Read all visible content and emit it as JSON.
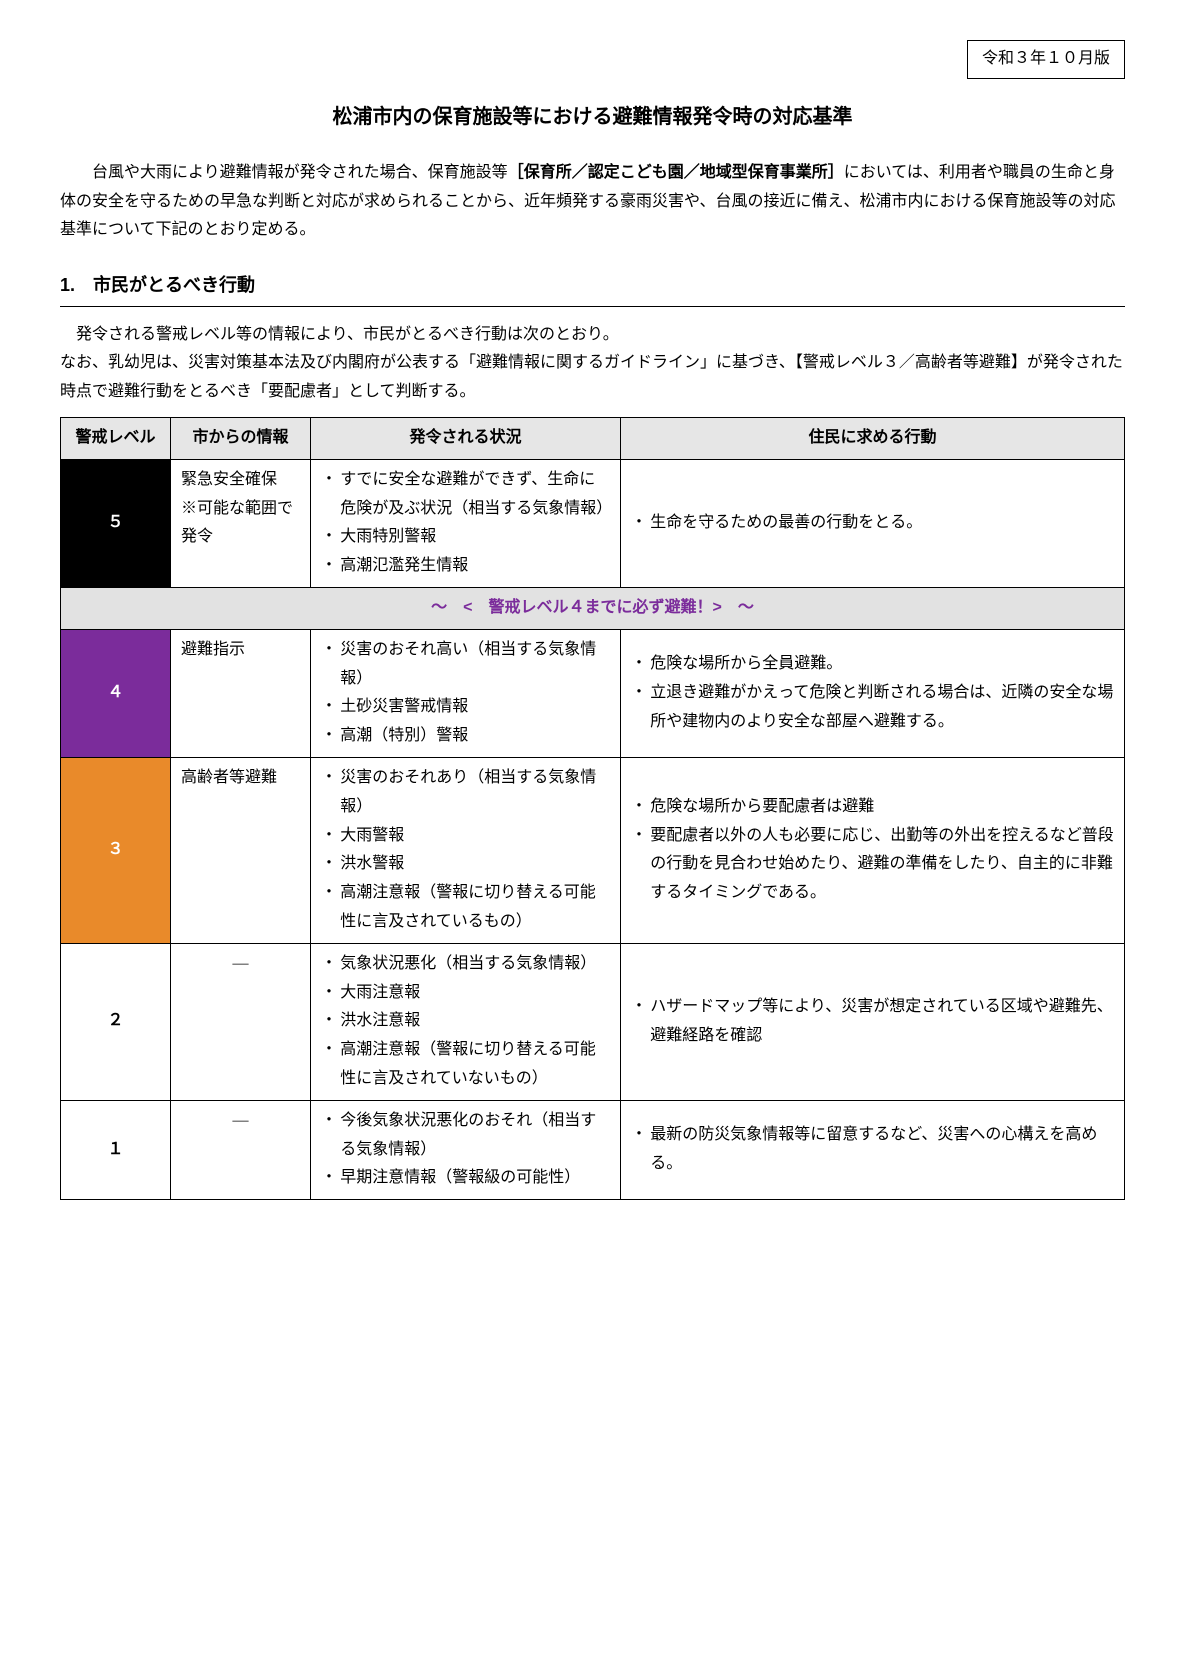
{
  "version_label": "令和３年１０月版",
  "title": "松浦市内の保育施設等における避難情報発令時の対応基準",
  "intro_pre": "　台風や大雨により避難情報が発令された場合、保育施設等",
  "intro_bold": "［保育所／認定こども園／地域型保育事業所］",
  "intro_post": "においては、利用者や職員の生命と身体の安全を守るための早急な判断と対応が求められることから、近年頻発する豪雨災害や、台風の接近に備え、松浦市内における保育施設等の対応基準について下記のとおり定める。",
  "section1_heading": "1.　市民がとるべき行動",
  "section1_p1": "発令される警戒レベル等の情報により、市民がとるべき行動は次のとおり。",
  "section1_p2": "なお、乳幼児は、災害対策基本法及び内閣府が公表する「避難情報に関するガイドライン」に基づき、【警戒レベル３／高齢者等避難】が発令された時点で避難行動をとるべき「要配慮者」として判断する。",
  "table": {
    "headers": {
      "level": "警戒レベル",
      "info": "市からの情報",
      "condition": "発令される状況",
      "action": "住民に求める行動"
    },
    "banner": "～　<　警戒レベル４までに必ず避難！>　～",
    "rows": {
      "lv5": {
        "level": "５",
        "info": "緊急安全確保\n※可能な範囲で発令",
        "conditions": [
          "すでに安全な避難ができず、生命に危険が及ぶ状況（相当する気象情報）",
          "大雨特別警報",
          "高潮氾濫発生情報"
        ],
        "actions": [
          "生命を守るための最善の行動をとる。"
        ]
      },
      "lv4": {
        "level": "４",
        "info": "避難指示",
        "conditions": [
          "災害のおそれ高い（相当する気象情報）",
          "土砂災害警戒情報",
          "高潮（特別）警報"
        ],
        "actions": [
          "危険な場所から全員避難。",
          "立退き避難がかえって危険と判断される場合は、近隣の安全な場所や建物内のより安全な部屋へ避難する。"
        ]
      },
      "lv3": {
        "level": "３",
        "info": "高齢者等避難",
        "conditions": [
          "災害のおそれあり（相当する気象情報）",
          "大雨警報",
          "洪水警報",
          "高潮注意報（警報に切り替える可能性に言及されているもの）"
        ],
        "actions": [
          "危険な場所から要配慮者は避難",
          "要配慮者以外の人も必要に応じ、出勤等の外出を控えるなど普段の行動を見合わせ始めたり、避難の準備をしたり、自主的に非難するタイミングである。"
        ]
      },
      "lv2": {
        "level": "２",
        "info": "―",
        "conditions": [
          "気象状況悪化（相当する気象情報）",
          "大雨注意報",
          "洪水注意報",
          "高潮注意報（警報に切り替える可能性に言及されていないもの）"
        ],
        "actions": [
          "ハザードマップ等により、災害が想定されている区域や避難先、避難経路を確認"
        ]
      },
      "lv1": {
        "level": "１",
        "info": "―",
        "conditions": [
          "今後気象状況悪化のおそれ（相当する気象情報）",
          "早期注意情報（警報級の可能性）"
        ],
        "actions": [
          "最新の防災気象情報等に留意するなど、災害への心構えを高める。"
        ]
      }
    },
    "colors": {
      "lv5_bg": "#000000",
      "lv5_fg": "#ffffff",
      "lv4_bg": "#7b2c9b",
      "lv4_fg": "#ffffff",
      "lv3_bg": "#e98a2a",
      "lv3_fg": "#ffffff",
      "lv2_bg": "#ffffff",
      "lv2_fg": "#000000",
      "lv1_bg": "#ffffff",
      "lv1_fg": "#000000",
      "header_bg": "#e6e6e6",
      "banner_bg": "#e2e2e2",
      "banner_fg": "#7b2c9b"
    }
  }
}
